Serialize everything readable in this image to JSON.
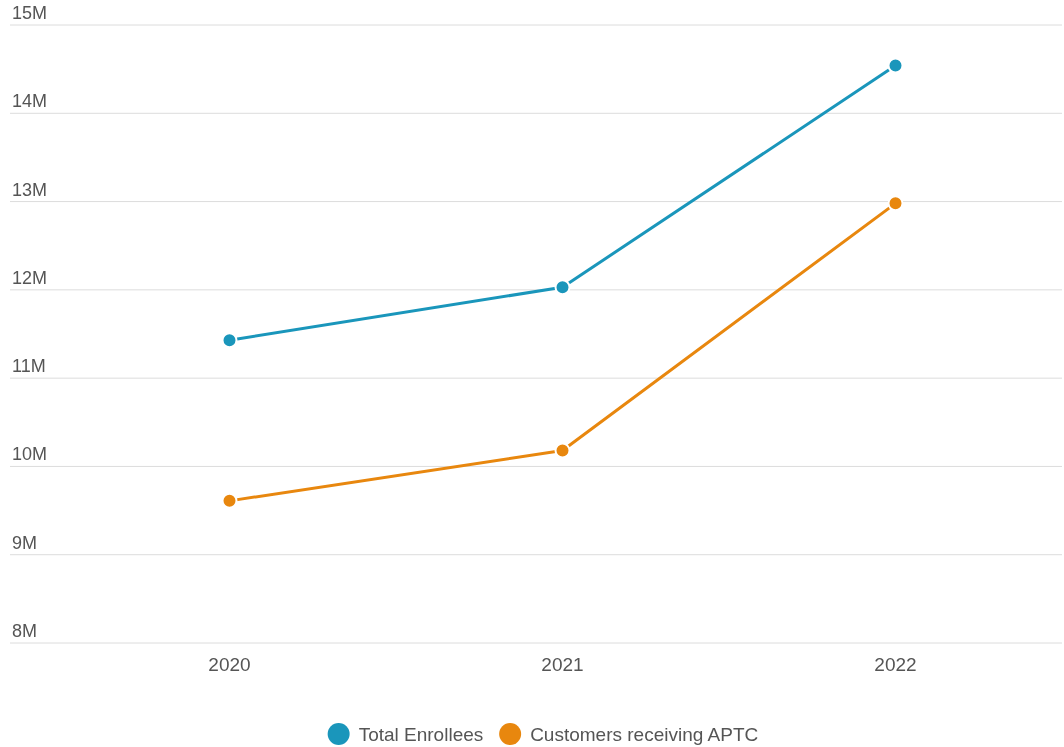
{
  "chart_data": {
    "type": "line",
    "categories": [
      "2020",
      "2021",
      "2022"
    ],
    "series": [
      {
        "name": "Total Enrollees",
        "color": "#1a96bb",
        "values": [
          11.43,
          12.03,
          14.54
        ]
      },
      {
        "name": "Customers receiving APTC",
        "color": "#e8870e",
        "values": [
          9.61,
          10.18,
          12.98
        ]
      }
    ],
    "ylim": [
      8,
      15
    ],
    "yticks": [
      {
        "value": 8,
        "label": "8M"
      },
      {
        "value": 9,
        "label": "9M"
      },
      {
        "value": 10,
        "label": "10M"
      },
      {
        "value": 11,
        "label": "11M"
      },
      {
        "value": 12,
        "label": "12M"
      },
      {
        "value": 13,
        "label": "13M"
      },
      {
        "value": 14,
        "label": "14M"
      },
      {
        "value": 15,
        "label": "15M"
      }
    ],
    "grid": "y",
    "legend": "bottom",
    "marker": "circle",
    "line_style": "solid"
  }
}
